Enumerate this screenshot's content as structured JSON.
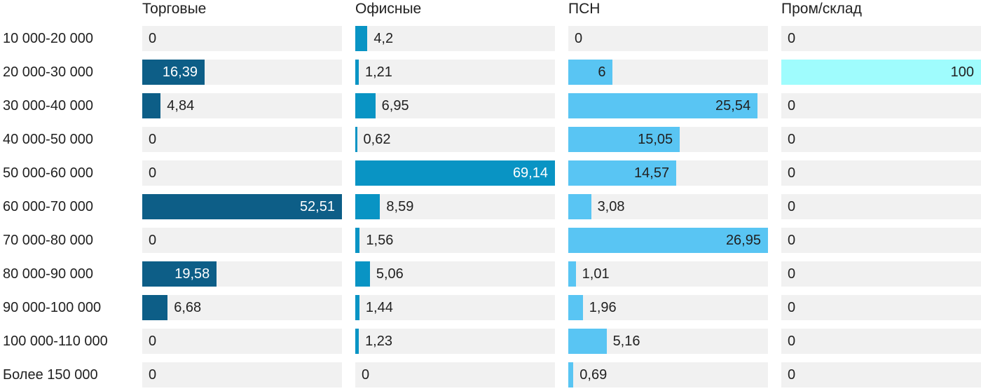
{
  "chart_data": {
    "type": "bar",
    "orientation": "horizontal",
    "title": "",
    "categories": [
      "10 000-20 000",
      "20 000-30 000",
      "30 000-40 000",
      "40 000-50 000",
      "50 000-60 000",
      "60 000-70 000",
      "70 000-80 000",
      "80 000-90 000",
      "90 000-100 000",
      "100 000-110 000",
      "Более 150 000"
    ],
    "series": [
      {
        "name": "Торговые",
        "color": "#0d5e87",
        "inside_label_color": "#ffffff",
        "values": [
          0,
          16.39,
          4.84,
          0,
          0,
          52.51,
          0,
          19.58,
          6.68,
          0,
          0
        ],
        "labels": [
          "0",
          "16,39",
          "4,84",
          "0",
          "0",
          "52,51",
          "0",
          "19,58",
          "6,68",
          "0",
          "0"
        ]
      },
      {
        "name": "Офисные",
        "color": "#0994c4",
        "inside_label_color": "#ffffff",
        "values": [
          4.2,
          1.21,
          6.95,
          0.62,
          69.14,
          8.59,
          1.56,
          5.06,
          1.44,
          1.23,
          0
        ],
        "labels": [
          "4,2",
          "1,21",
          "6,95",
          "0,62",
          "69,14",
          "8,59",
          "1,56",
          "5,06",
          "1,44",
          "1,23",
          "0"
        ]
      },
      {
        "name": "ПСН",
        "color": "#59c5f3",
        "inside_label_color": "#212121",
        "values": [
          0,
          6,
          25.54,
          15.05,
          14.57,
          3.08,
          26.95,
          1.01,
          1.96,
          5.16,
          0.69
        ],
        "labels": [
          "0",
          "6",
          "25,54",
          "15,05",
          "14,57",
          "3,08",
          "26,95",
          "1,01",
          "1,96",
          "5,16",
          "0,69"
        ]
      },
      {
        "name": "Пром/склад",
        "color": "#9ffcfd",
        "inside_label_color": "#212121",
        "values": [
          0,
          100,
          0,
          0,
          0,
          0,
          0,
          0,
          0,
          0,
          0
        ],
        "labels": [
          "0",
          "100",
          "0",
          "0",
          "0",
          "0",
          "0",
          "0",
          "0",
          "0",
          "0"
        ]
      }
    ],
    "layout": {
      "track_color": "#f1f1f1",
      "text_color": "#212121",
      "scale": "each column scaled so its max value fills the full track width",
      "value_label_rule": "label inside bar right-aligned when it fits, otherwise outside right of bar; zero values shown at track left",
      "legend_position": "column headers above each bar column",
      "grid": "off"
    }
  }
}
